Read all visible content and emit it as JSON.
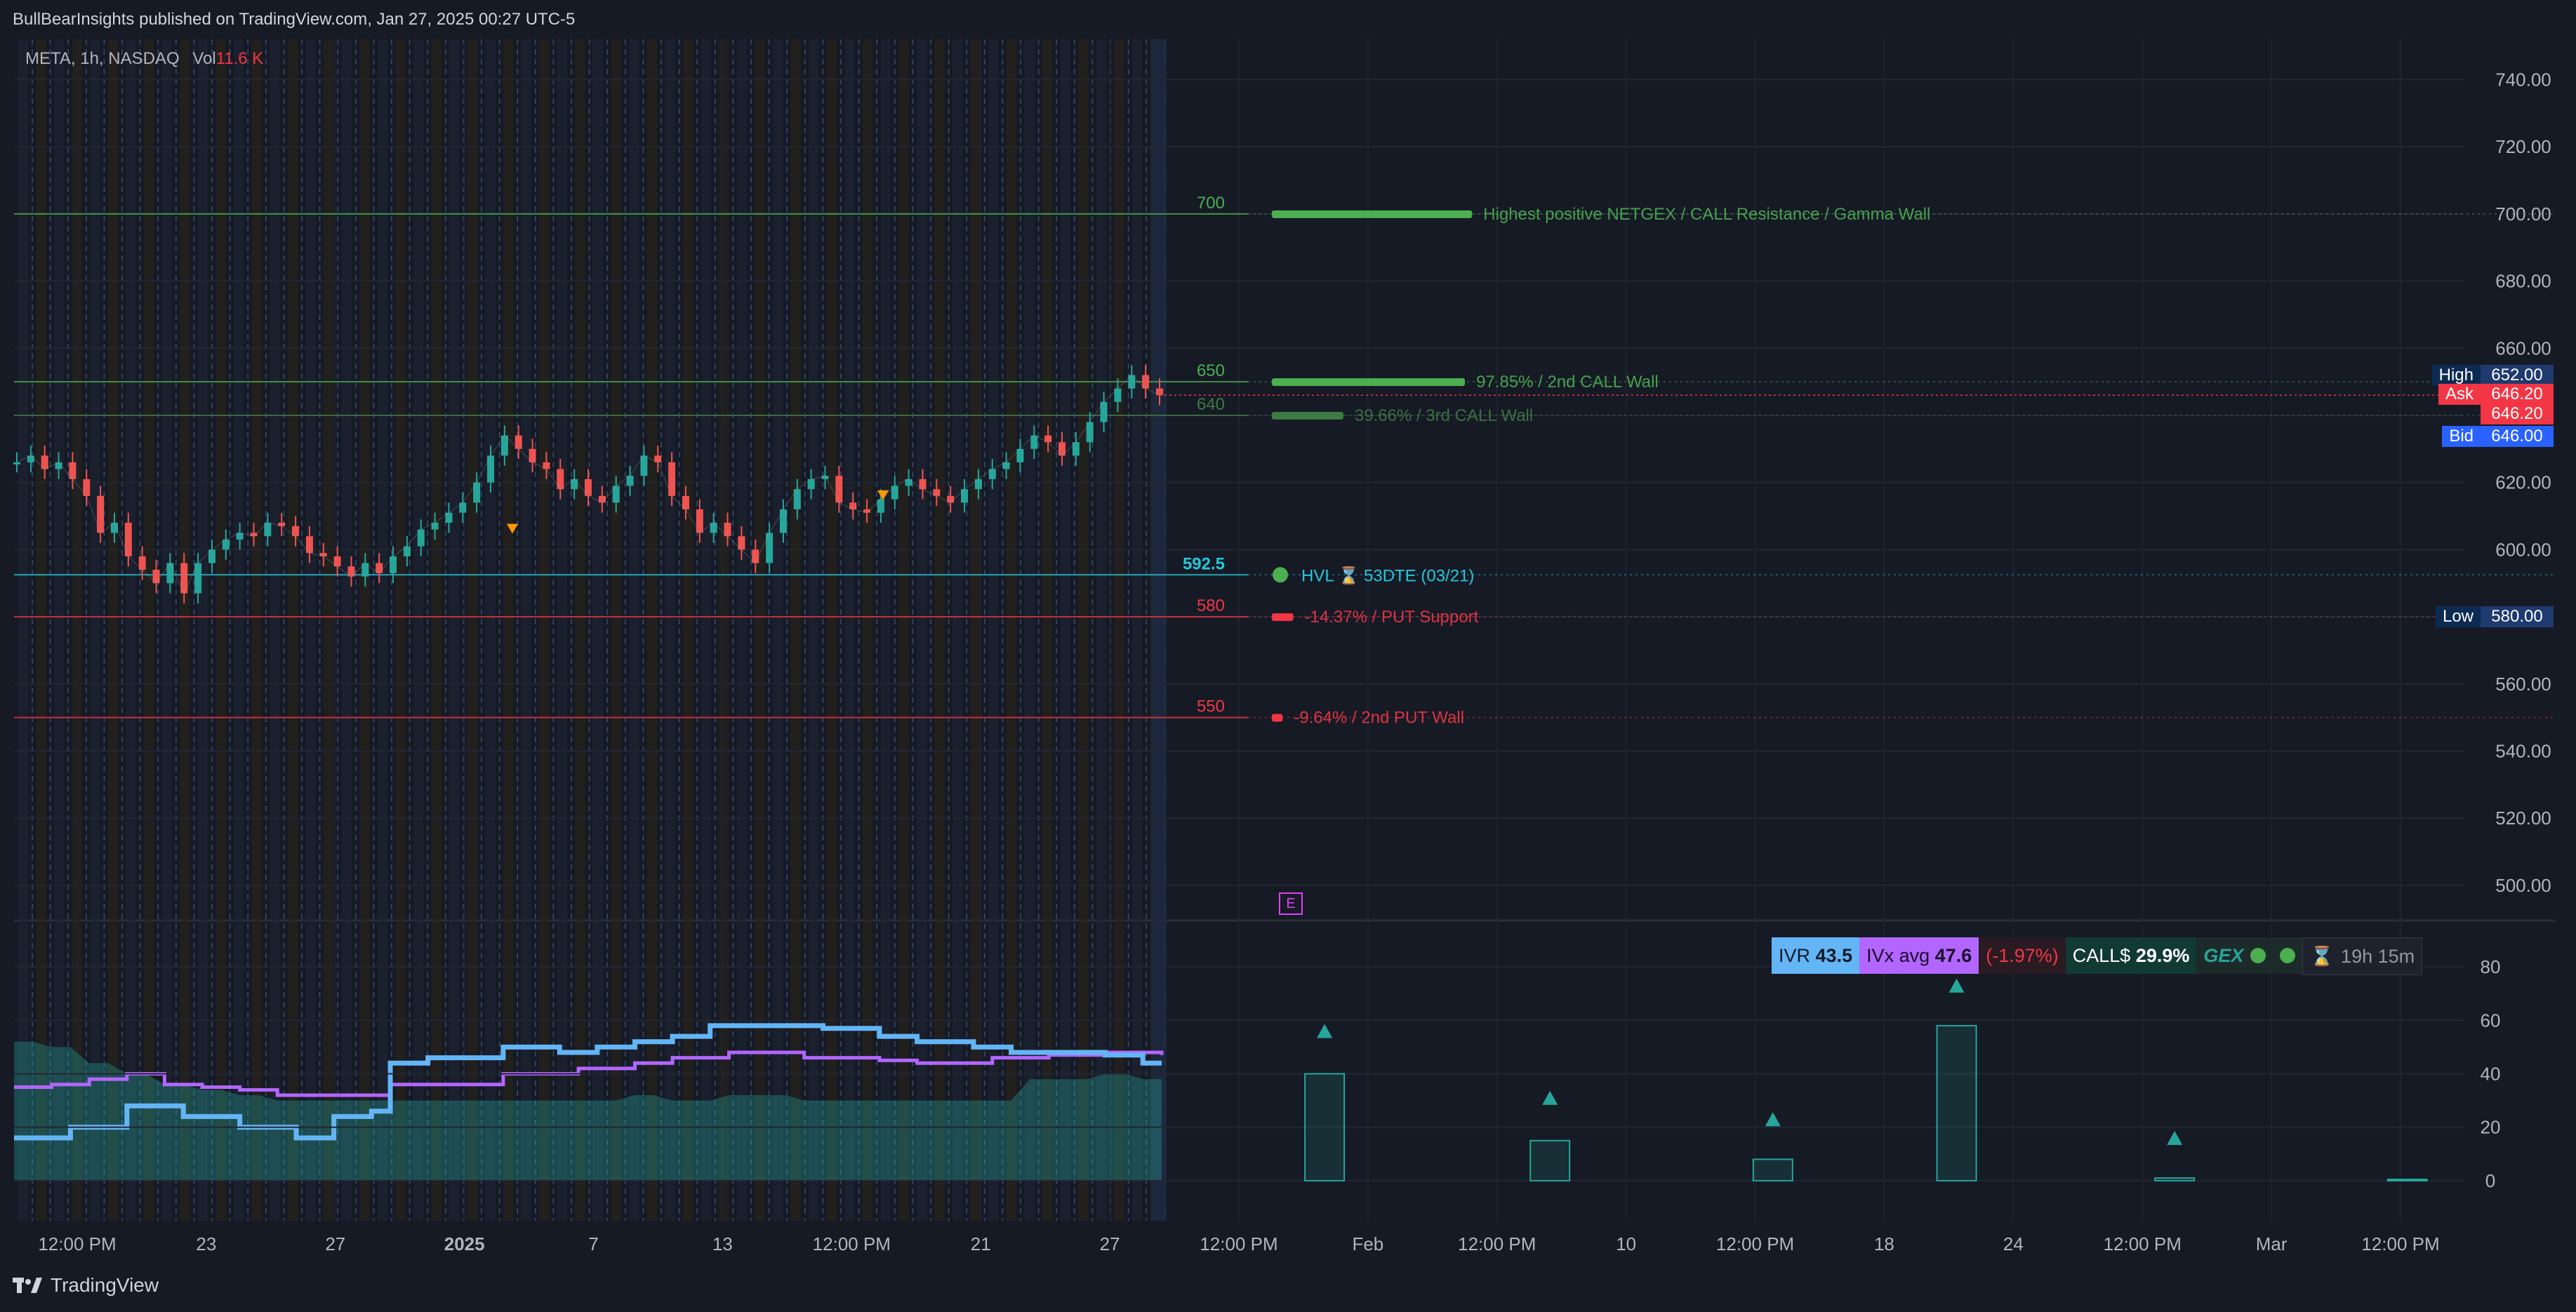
{
  "header": {
    "published": "BullBearInsights published on TradingView.com, Jan 27, 2025 00:27 UTC-5"
  },
  "legend": {
    "symbol": "META, 1h, NASDAQ",
    "vol_label": "Vol",
    "vol_value": "11.6 K"
  },
  "footer": {
    "brand": "TradingView"
  },
  "colors": {
    "background": "#161a25",
    "green": "#4caf50",
    "red": "#f23645",
    "cyan": "#26c6da",
    "blue": "#64b5f6",
    "purple": "#b266ff",
    "teal": "#26a69a"
  },
  "chart_data": {
    "type": "line",
    "price_axis": {
      "ticks": [
        "740.00",
        "720.00",
        "700.00",
        "680.00",
        "660.00",
        "640.00",
        "620.00",
        "600.00",
        "580.00",
        "560.00",
        "540.00",
        "520.00",
        "500.00"
      ],
      "range": [
        491,
        752
      ]
    },
    "time_axis": {
      "ticks": [
        "12:00 PM",
        "23",
        "27",
        "2025",
        "7",
        "13",
        "12:00 PM",
        "21",
        "27",
        "12:00 PM",
        "Feb",
        "12:00 PM",
        "10",
        "12:00 PM",
        "18",
        "24",
        "12:00 PM",
        "Mar",
        "12:00 PM"
      ]
    },
    "price_series": {
      "name": "META",
      "values": [
        626,
        628,
        624,
        626,
        621,
        616,
        605,
        608,
        598,
        594,
        590,
        596,
        587,
        596,
        600,
        603,
        605,
        604,
        608,
        607,
        604,
        599,
        598,
        595,
        592,
        596,
        593,
        598,
        601,
        606,
        608,
        611,
        614,
        620,
        628,
        634,
        630,
        626,
        624,
        618,
        621,
        616,
        614,
        619,
        622,
        628,
        626,
        616,
        612,
        605,
        608,
        604,
        600,
        596,
        605,
        612,
        618,
        621,
        622,
        614,
        612,
        611,
        615,
        619,
        621,
        618,
        616,
        614,
        618,
        621,
        624,
        626,
        630,
        634,
        632,
        628,
        632,
        638,
        644,
        648,
        652,
        648,
        646
      ]
    },
    "levels": [
      {
        "price": 700,
        "label": "700",
        "note": "Highest positive NETGEX / CALL Resistance / Gamma Wall",
        "color": "#4caf50",
        "bar_width": 0.28
      },
      {
        "price": 650,
        "label": "650",
        "note": "97.85% / 2nd CALL Wall",
        "color": "#4caf50",
        "bar_width": 0.27
      },
      {
        "price": 640,
        "label": "640",
        "note": "39.66% / 3rd CALL Wall",
        "color": "#3d7a44",
        "bar_width": 0.1
      },
      {
        "price": 592.5,
        "label": "592.5",
        "note": "HVL",
        "note_suffix": "53DTE (03/21)",
        "color": "#26c6da",
        "bar_width": 0
      },
      {
        "price": 580,
        "label": "580",
        "note": "-14.37% / PUT Support",
        "color": "#f23645",
        "bar_width": 0.03
      },
      {
        "price": 550,
        "label": "550",
        "note": "-9.64% / 2nd PUT Wall",
        "color": "#f23645",
        "bar_width": 0.015
      }
    ],
    "price_labels": [
      {
        "name": "High",
        "value": "652.00",
        "price": 652
      },
      {
        "name": "Ask",
        "value": "646.20",
        "price": 646.2
      },
      {
        "name": "",
        "value": "646.20",
        "price": 640.5
      },
      {
        "name": "Bid",
        "value": "646.00",
        "price": 633.7
      },
      {
        "name": "Low",
        "value": "580.00",
        "price": 580
      }
    ],
    "indicator": {
      "ticks": [
        "80",
        "60",
        "40",
        "20",
        "0"
      ],
      "range": [
        -15,
        90
      ],
      "ivr": {
        "label": "IVR",
        "value": "43.5"
      },
      "ivx": {
        "label": "IVx avg",
        "value": "47.6"
      },
      "change": "(-1.97%)",
      "calls": {
        "label": "CALL$",
        "value": "29.9%"
      },
      "gex": "GEX",
      "timer": "19h 15m",
      "iv_series": [
        16,
        16,
        16,
        20,
        20,
        20,
        28,
        28,
        28,
        24,
        24,
        24,
        20,
        20,
        20,
        16,
        16,
        24,
        24,
        26,
        44,
        44,
        46,
        46,
        46,
        46,
        50,
        50,
        50,
        48,
        48,
        50,
        50,
        52,
        52,
        54,
        54,
        58,
        58,
        58,
        58,
        58,
        58,
        57,
        57,
        57,
        54,
        54,
        52,
        52,
        52,
        50,
        50,
        48,
        48,
        48,
        48,
        48,
        47,
        47,
        44,
        44
      ],
      "ivx_series": [
        35,
        35,
        36,
        36,
        38,
        38,
        40,
        40,
        36,
        36,
        35,
        35,
        34,
        34,
        32,
        32,
        32,
        32,
        32,
        32,
        36,
        36,
        36,
        36,
        36,
        36,
        40,
        40,
        40,
        40,
        42,
        42,
        42,
        44,
        44,
        46,
        46,
        46,
        48,
        48,
        48,
        48,
        46,
        46,
        46,
        46,
        45,
        45,
        44,
        44,
        44,
        44,
        46,
        46,
        46,
        47,
        47,
        47,
        48,
        48,
        48,
        47
      ],
      "bars": [
        {
          "x": 0.535,
          "value": 40,
          "marker": 56
        },
        {
          "x": 0.627,
          "value": 15,
          "marker": 31
        },
        {
          "x": 0.718,
          "value": 8,
          "marker": 23
        },
        {
          "x": 0.793,
          "value": 58,
          "marker": 73
        },
        {
          "x": 0.882,
          "value": 1,
          "marker": 16
        },
        {
          "x": 0.977,
          "value": 0.5,
          "marker": null
        }
      ]
    }
  }
}
